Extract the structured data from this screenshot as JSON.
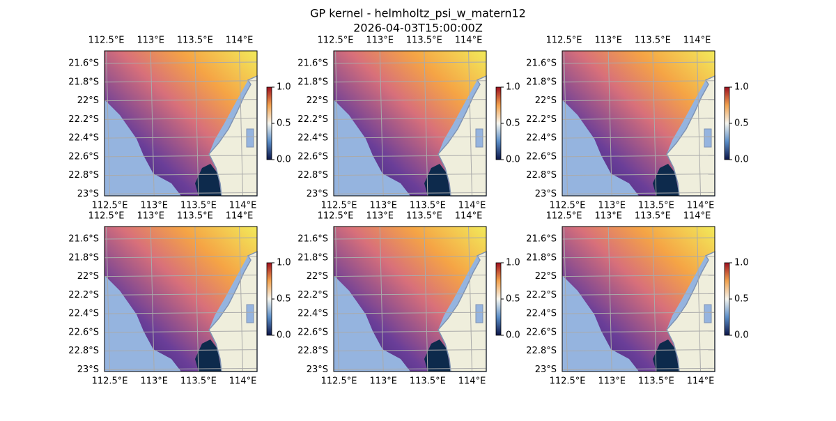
{
  "figure": {
    "title": "GP kernel - helmholtz_psi_w_matern12",
    "subtitle": "2026-04-03T15:00:00Z"
  },
  "axes": {
    "lonlim": [
      112.48,
      114.2
    ],
    "latlim": [
      -21.465,
      -23.02
    ],
    "lon_ticks": [
      {
        "value": 112.5,
        "label": "112.5°E"
      },
      {
        "value": 113,
        "label": "113°E"
      },
      {
        "value": 113.5,
        "label": "113.5°E"
      },
      {
        "value": 114,
        "label": "114°E"
      }
    ],
    "lat_ticks": [
      {
        "value": -21.6,
        "label": "21.6°S"
      },
      {
        "value": -21.8,
        "label": "21.8°S"
      },
      {
        "value": -22,
        "label": "22°S"
      },
      {
        "value": -22.2,
        "label": "22.2°S"
      },
      {
        "value": -22.4,
        "label": "22.4°S"
      },
      {
        "value": -22.6,
        "label": "22.6°S"
      },
      {
        "value": -22.8,
        "label": "22.8°S"
      },
      {
        "value": -23,
        "label": "23°S"
      }
    ]
  },
  "colorbar": {
    "lim": [
      0,
      1
    ],
    "ticks": [
      {
        "value": 0,
        "label": "0.0"
      },
      {
        "value": 0.5,
        "label": "0.5"
      },
      {
        "value": 1,
        "label": "1.0"
      }
    ]
  }
}
